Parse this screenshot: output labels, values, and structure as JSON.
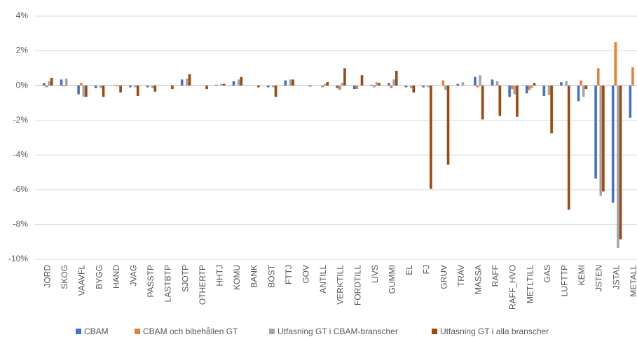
{
  "chart_data": {
    "type": "bar",
    "categories": [
      "JORD",
      "SKOG",
      "VAAVFL",
      "BYGG",
      "HAND",
      "JVAG",
      "PASSTP",
      "LASTBTP",
      "SJOTP",
      "OTHERTP",
      "HHTJ",
      "KOMU",
      "BANK",
      "BOST",
      "FTTJ",
      "GOV",
      "ANTILL",
      "VERKTILL",
      "FORDTILL",
      "LIVS",
      "GUMMI",
      "EL",
      "FJ",
      "GRUV",
      "TRAV",
      "MASSA",
      "RAFF",
      "RAFF_HVO",
      "METLTILL",
      "GAS",
      "LUFTTP",
      "KEMI",
      "JSTEN",
      "JSTAL",
      "METALL"
    ],
    "series": [
      {
        "name": "CBAM",
        "color": "#4472c4",
        "values": [
          0.15,
          0.35,
          -0.5,
          -0.15,
          0,
          -0.1,
          -0.1,
          0,
          0.35,
          0,
          0.05,
          0.25,
          0,
          -0.1,
          0.3,
          0,
          0,
          -0.15,
          -0.2,
          0.05,
          0.15,
          -0.1,
          -0.1,
          0,
          0.1,
          0.5,
          0.35,
          -0.65,
          -0.45,
          -0.6,
          0.2,
          -0.9,
          -5.35,
          -6.75,
          -1.85
        ]
      },
      {
        "name": "CBAM och bibehållen GT",
        "color": "#ed7d31",
        "values": [
          -0.1,
          -0.05,
          0.15,
          0,
          0.05,
          0,
          0,
          0,
          0,
          0,
          0,
          0,
          0,
          0,
          0,
          0,
          -0.1,
          -0.25,
          -0.2,
          -0.1,
          -0.15,
          0,
          0,
          0.3,
          0,
          -0.1,
          0,
          -0.2,
          -0.25,
          0,
          0,
          0.3,
          1.0,
          2.5,
          1.05
        ]
      },
      {
        "name": "Utfasning GT i CBAM-branscher",
        "color": "#a5a5a5",
        "values": [
          0.25,
          0.4,
          -0.65,
          -0.15,
          -0.05,
          -0.1,
          -0.15,
          0,
          0.4,
          0,
          0.1,
          0.35,
          0,
          -0.1,
          0.35,
          0,
          0.1,
          0.15,
          0,
          0.2,
          0.35,
          -0.15,
          -0.1,
          -0.25,
          0.2,
          0.6,
          0.25,
          -0.5,
          -0.15,
          -0.55,
          0.25,
          -0.65,
          -6.35,
          -9.35,
          null
        ]
      },
      {
        "name": "Utfasning GT i alla branscher",
        "color": "#9e480e",
        "values": [
          0.45,
          0,
          -0.65,
          -0.65,
          -0.4,
          -0.6,
          -0.35,
          -0.2,
          0.65,
          -0.2,
          0.1,
          0.5,
          -0.1,
          -0.65,
          0.35,
          -0.05,
          0.2,
          1.0,
          0.6,
          0.15,
          0.85,
          -0.4,
          -5.95,
          -4.55,
          0,
          -1.95,
          -1.75,
          -1.8,
          0.15,
          -2.75,
          -7.15,
          -0.2,
          -6.1,
          -8.85,
          null
        ]
      }
    ],
    "ylim": [
      -10,
      4
    ],
    "yticks": [
      {
        "value": -10,
        "label": "-10%"
      },
      {
        "value": -8,
        "label": "-8%"
      },
      {
        "value": -6,
        "label": "-6%"
      },
      {
        "value": -4,
        "label": "-4%"
      },
      {
        "value": -2,
        "label": "-2%"
      },
      {
        "value": 0,
        "label": "0%"
      },
      {
        "value": 2,
        "label": "2%"
      },
      {
        "value": 4,
        "label": "4%"
      }
    ],
    "grid": true,
    "legend": "bottom"
  }
}
